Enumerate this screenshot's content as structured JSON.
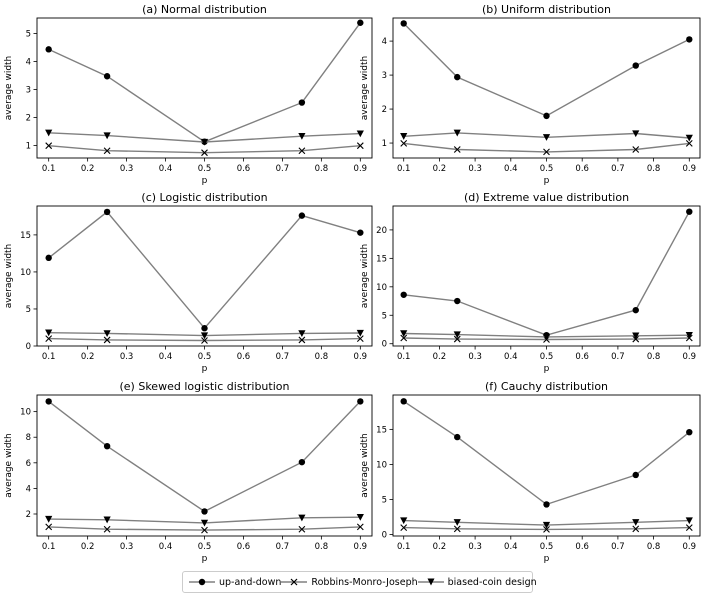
{
  "chart_data": [
    {
      "type": "line",
      "title": "(a) Normal distribution",
      "xlabel": "p",
      "ylabel": "average width",
      "x": [
        0.1,
        0.25,
        0.5,
        0.75,
        0.9
      ],
      "xlim": [
        0.07,
        0.93
      ],
      "ylim": [
        0.55,
        5.55
      ],
      "xticks": [
        0.1,
        0.2,
        0.3,
        0.4,
        0.5,
        0.6,
        0.7,
        0.8,
        0.9
      ],
      "yticks": [
        1,
        2,
        3,
        4,
        5
      ],
      "series": [
        {
          "name": "up-and-down",
          "values": [
            4.43,
            3.47,
            1.13,
            2.53,
            5.38
          ]
        },
        {
          "name": "Robbins-Monro-Joseph",
          "values": [
            0.99,
            0.81,
            0.74,
            0.81,
            0.99
          ]
        },
        {
          "name": "biased-coin design",
          "values": [
            1.45,
            1.35,
            1.12,
            1.33,
            1.42
          ]
        }
      ]
    },
    {
      "type": "line",
      "title": "(b) Uniform distribution",
      "xlabel": "p",
      "ylabel": "average width",
      "x": [
        0.1,
        0.25,
        0.5,
        0.75,
        0.9
      ],
      "xlim": [
        0.07,
        0.93
      ],
      "ylim": [
        0.56,
        4.68
      ],
      "xticks": [
        0.1,
        0.2,
        0.3,
        0.4,
        0.5,
        0.6,
        0.7,
        0.8,
        0.9
      ],
      "yticks": [
        1,
        2,
        3,
        4
      ],
      "series": [
        {
          "name": "up-and-down",
          "values": [
            4.52,
            2.94,
            1.8,
            3.28,
            4.05
          ]
        },
        {
          "name": "Robbins-Monro-Joseph",
          "values": [
            0.99,
            0.81,
            0.74,
            0.81,
            0.99
          ]
        },
        {
          "name": "biased-coin design",
          "values": [
            1.2,
            1.3,
            1.17,
            1.28,
            1.15
          ]
        }
      ]
    },
    {
      "type": "line",
      "title": "(c) Logistic distribution",
      "xlabel": "p",
      "ylabel": "average width",
      "x": [
        0.1,
        0.25,
        0.5,
        0.75,
        0.9
      ],
      "xlim": [
        0.07,
        0.93
      ],
      "ylim": [
        0,
        18.9
      ],
      "xticks": [
        0.1,
        0.2,
        0.3,
        0.4,
        0.5,
        0.6,
        0.7,
        0.8,
        0.9
      ],
      "yticks": [
        0,
        5,
        10,
        15
      ],
      "series": [
        {
          "name": "up-and-down",
          "values": [
            11.9,
            18.1,
            2.4,
            17.6,
            15.3
          ]
        },
        {
          "name": "Robbins-Monro-Joseph",
          "values": [
            1.0,
            0.82,
            0.74,
            0.82,
            1.0
          ]
        },
        {
          "name": "biased-coin design",
          "values": [
            1.8,
            1.7,
            1.4,
            1.7,
            1.75
          ]
        }
      ]
    },
    {
      "type": "line",
      "title": "(d) Extreme value distribution",
      "xlabel": "p",
      "ylabel": "average width",
      "x": [
        0.1,
        0.25,
        0.5,
        0.75,
        0.9
      ],
      "xlim": [
        0.07,
        0.93
      ],
      "ylim": [
        -0.4,
        24.2
      ],
      "xticks": [
        0.1,
        0.2,
        0.3,
        0.4,
        0.5,
        0.6,
        0.7,
        0.8,
        0.9
      ],
      "yticks": [
        0,
        5,
        10,
        15,
        20
      ],
      "series": [
        {
          "name": "up-and-down",
          "values": [
            8.6,
            7.5,
            1.5,
            5.9,
            23.2
          ]
        },
        {
          "name": "Robbins-Monro-Joseph",
          "values": [
            1.0,
            0.82,
            0.74,
            0.82,
            1.0
          ]
        },
        {
          "name": "biased-coin design",
          "values": [
            1.8,
            1.6,
            1.2,
            1.4,
            1.5
          ]
        }
      ]
    },
    {
      "type": "line",
      "title": "(e) Skewed logistic distribution",
      "xlabel": "p",
      "ylabel": "average width",
      "x": [
        0.1,
        0.25,
        0.5,
        0.75,
        0.9
      ],
      "xlim": [
        0.07,
        0.93
      ],
      "ylim": [
        0.28,
        11.3
      ],
      "xticks": [
        0.1,
        0.2,
        0.3,
        0.4,
        0.5,
        0.6,
        0.7,
        0.8,
        0.9
      ],
      "yticks": [
        2,
        4,
        6,
        8,
        10
      ],
      "series": [
        {
          "name": "up-and-down",
          "values": [
            10.8,
            7.3,
            2.2,
            6.05,
            10.8
          ]
        },
        {
          "name": "Robbins-Monro-Joseph",
          "values": [
            0.99,
            0.81,
            0.74,
            0.81,
            0.99
          ]
        },
        {
          "name": "biased-coin design",
          "values": [
            1.6,
            1.55,
            1.3,
            1.7,
            1.75
          ]
        }
      ]
    },
    {
      "type": "line",
      "title": "(f) Cauchy distribution",
      "xlabel": "p",
      "ylabel": "average width",
      "x": [
        0.1,
        0.25,
        0.5,
        0.75,
        0.9
      ],
      "xlim": [
        0.07,
        0.93
      ],
      "ylim": [
        -0.2,
        19.9
      ],
      "xticks": [
        0.1,
        0.2,
        0.3,
        0.4,
        0.5,
        0.6,
        0.7,
        0.8,
        0.9
      ],
      "yticks": [
        0,
        5,
        10,
        15
      ],
      "series": [
        {
          "name": "up-and-down",
          "values": [
            19.0,
            13.9,
            4.3,
            8.5,
            14.6
          ]
        },
        {
          "name": "Robbins-Monro-Joseph",
          "values": [
            1.0,
            0.82,
            0.74,
            0.82,
            1.0
          ]
        },
        {
          "name": "biased-coin design",
          "values": [
            2.0,
            1.75,
            1.35,
            1.75,
            2.0
          ]
        }
      ]
    }
  ],
  "legend": {
    "entries": [
      {
        "label": "up-and-down",
        "marker": "circle"
      },
      {
        "label": "Robbins-Monro-Joseph",
        "marker": "x"
      },
      {
        "label": "biased-coin design",
        "marker": "triangle-down"
      }
    ]
  },
  "colors": {
    "line": "#808080",
    "marker": "#000000",
    "axis": "#000000"
  }
}
